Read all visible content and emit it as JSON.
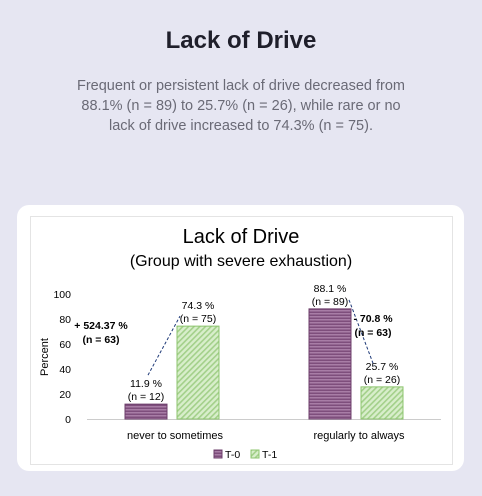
{
  "page": {
    "title": "Lack of Drive",
    "description": "Frequent or persistent lack of drive decreased from 88.1% (n = 89) to 25.7% (n = 26), while rare or no lack of drive increased to 74.3% (n = 75)."
  },
  "chart_data": {
    "type": "bar",
    "title": "Lack of Drive",
    "subtitle": "(Group with severe exhaustion)",
    "ylabel": "Percent",
    "xlabel": "",
    "ylim": [
      0,
      100
    ],
    "yticks": [
      "0",
      "20",
      "40",
      "60",
      "80",
      "100"
    ],
    "categories": [
      "never to sometimes",
      "regularly to always"
    ],
    "series": [
      {
        "name": "T-0",
        "values": [
          11.9,
          88.1
        ],
        "labels": [
          "11.9 %",
          "88.1 %"
        ],
        "n_labels": [
          "(n = 12)",
          "(n = 89)"
        ],
        "color": "#a87da6",
        "pattern": "horizontal-lines"
      },
      {
        "name": "T-1",
        "values": [
          74.3,
          25.7
        ],
        "labels": [
          "74.3 %",
          "25.7 %"
        ],
        "n_labels": [
          "(n = 75)",
          "(n = 26)"
        ],
        "color": "#b6dca0",
        "pattern": "diagonal-lines"
      }
    ],
    "changes": [
      {
        "label": "+ 524.37 %",
        "n_label": "(n = 63)"
      },
      {
        "label": "- 70.8 %",
        "n_label": "(n = 63)"
      }
    ],
    "legend_position": "bottom",
    "grid": false
  }
}
